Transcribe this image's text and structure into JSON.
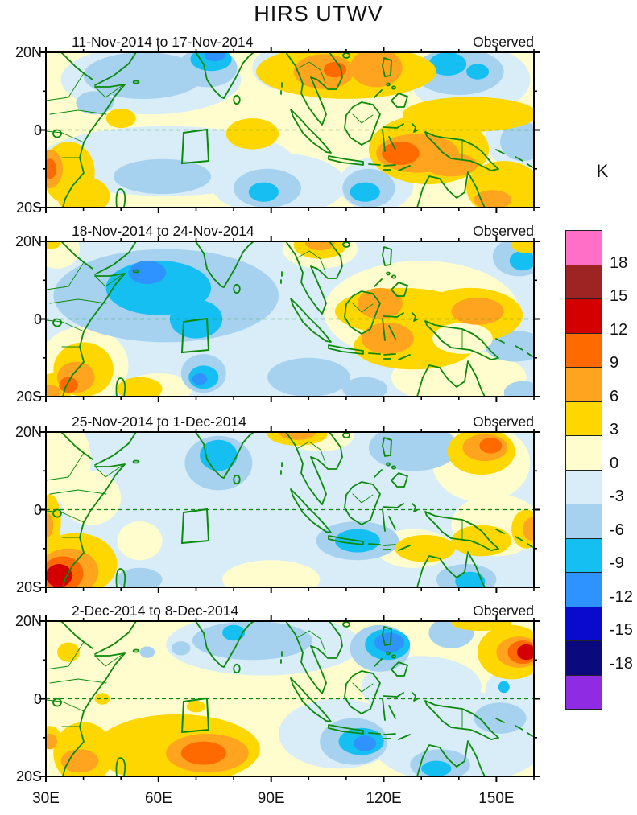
{
  "chart_data": {
    "type": "heatmap",
    "title": "HIRS UTWV",
    "colorbar": {
      "label": "K",
      "tick_values": [
        18,
        15,
        12,
        9,
        6,
        3,
        0,
        -3,
        -6,
        -9,
        -12,
        -15,
        -18
      ],
      "cell_colors_top_to_bottom": [
        "#FF6EC7",
        "#9E2424",
        "#D40000",
        "#FF6A00",
        "#FFA41E",
        "#FFD700",
        "#FFFDCE",
        "#D9EDF8",
        "#A6D2F0",
        "#15BFF2",
        "#2E93FF",
        "#0A0ACD",
        "#0A0A7E",
        "#8F2BE2"
      ]
    },
    "band_colors": {
      "0": "#FFFDCE",
      "3": "#FFD700",
      "6": "#FFA41E",
      "9": "#FF6A00",
      "12": "#D40000",
      "15": "#9E2424",
      "18": "#FF6EC7",
      "-3": "#D9EDF8",
      "-6": "#A6D2F0",
      "-9": "#15BFF2",
      "-12": "#2E93FF",
      "-15": "#0A0ACD",
      "-18": "#0A0A7E",
      "-21": "#8F2BE2"
    },
    "x_axis": {
      "ticks": [
        "30E",
        "60E",
        "90E",
        "120E",
        "150E"
      ],
      "tick_lons": [
        30,
        60,
        90,
        120,
        150
      ],
      "lon_range": [
        30,
        160
      ],
      "minor_tick_deg": 10
    },
    "y_axis": {
      "ticks": [
        "20N",
        "0",
        "20S"
      ],
      "tick_lats": [
        20,
        0,
        -20
      ],
      "lat_range": [
        -20,
        20
      ],
      "minor_tick_deg": 10
    },
    "map": {
      "equator_dashed": true,
      "index_box_lon": [
        67,
        73
      ],
      "index_box_lat": [
        -8,
        0
      ],
      "coastline_color": "#0b8a0b"
    },
    "panels": [
      {
        "label": "11-Nov-2014 to 17-Nov-2014",
        "source": "Observed",
        "base_band": 0,
        "anomalies": [
          [
            58,
            13,
            24,
            9,
            -3
          ],
          [
            62,
            -8,
            34,
            9,
            -3
          ],
          [
            143,
            13,
            16,
            9,
            -3
          ],
          [
            92,
            -14,
            18,
            8,
            -3
          ],
          [
            156,
            -2,
            9,
            8,
            -3
          ],
          [
            118,
            -14,
            10,
            7,
            -3
          ],
          [
            95,
            16,
            10,
            6,
            -3
          ],
          [
            56,
            14,
            16,
            6,
            -6
          ],
          [
            73,
            16,
            8,
            5,
            -6
          ],
          [
            43,
            7,
            5,
            3,
            -6
          ],
          [
            61,
            -12,
            13,
            4.5,
            -6
          ],
          [
            89,
            -15,
            9,
            5,
            -6
          ],
          [
            140,
            15,
            12,
            6,
            -6
          ],
          [
            157,
            -3,
            6,
            5,
            -6
          ],
          [
            116,
            -15,
            7,
            5,
            -6
          ],
          [
            74,
            18.2,
            5.5,
            3,
            -9
          ],
          [
            88,
            -16,
            4,
            2.5,
            -9
          ],
          [
            137,
            17,
            5,
            3,
            -9
          ],
          [
            145,
            15,
            3,
            2,
            -9
          ],
          [
            115,
            -16,
            4,
            2.5,
            -9
          ],
          [
            75,
            19.3,
            2.8,
            1.6,
            -12
          ],
          [
            36,
            -11,
            7,
            8,
            3
          ],
          [
            40,
            -17,
            7,
            5,
            3
          ],
          [
            50,
            3,
            4,
            2.5,
            3
          ],
          [
            85,
            -1,
            7,
            4,
            3
          ],
          [
            110,
            15,
            24,
            7,
            3
          ],
          [
            143,
            4,
            18,
            4.5,
            3
          ],
          [
            132,
            -5,
            16,
            9,
            3
          ],
          [
            152,
            -15,
            10,
            7,
            3
          ],
          [
            155,
            -18,
            6,
            4,
            3
          ],
          [
            31,
            -10,
            3.5,
            5,
            6
          ],
          [
            104,
            15,
            8,
            4.5,
            6
          ],
          [
            118,
            16,
            7,
            5,
            6
          ],
          [
            129,
            -6,
            11,
            5,
            6
          ],
          [
            138,
            -9,
            7,
            3,
            6
          ],
          [
            149,
            -18,
            5,
            2.5,
            6
          ],
          [
            31,
            -10,
            1.8,
            2.6,
            9
          ],
          [
            107,
            15.5,
            3,
            2,
            9
          ],
          [
            124.5,
            -6,
            5,
            3,
            9
          ]
        ]
      },
      {
        "label": "18-Nov-2014 to 24-Nov-2014",
        "source": "Observed",
        "base_band": -3,
        "anomalies": [
          [
            33,
            18,
            6,
            5,
            0
          ],
          [
            40,
            -12,
            12,
            10,
            0
          ],
          [
            60,
            -18,
            9,
            4,
            0
          ],
          [
            130,
            2,
            26,
            13,
            0
          ],
          [
            140,
            -15,
            18,
            7,
            0
          ],
          [
            103,
            18,
            10,
            5,
            0
          ],
          [
            62,
            6,
            30,
            12,
            -6
          ],
          [
            100,
            -15,
            11,
            5,
            -6
          ],
          [
            156,
            16,
            7,
            5,
            -6
          ],
          [
            115,
            -18,
            6,
            3,
            -6
          ],
          [
            157,
            -19,
            5,
            3,
            -6
          ],
          [
            155,
            -7,
            8,
            4,
            -6
          ],
          [
            72,
            -14,
            6,
            5,
            -6
          ],
          [
            60,
            8,
            14,
            7,
            -9
          ],
          [
            70,
            0,
            7,
            5,
            -9
          ],
          [
            72,
            -15,
            4,
            3,
            -9
          ],
          [
            157,
            15,
            3.5,
            2.5,
            -9
          ],
          [
            57,
            12,
            5,
            3,
            -12
          ],
          [
            71,
            -15.5,
            2,
            1.5,
            -12
          ],
          [
            31,
            19.5,
            3,
            1.5,
            3
          ],
          [
            40,
            -13,
            8,
            7,
            3
          ],
          [
            32,
            -18,
            5,
            4,
            3
          ],
          [
            55,
            -18,
            6,
            3,
            3
          ],
          [
            103,
            19,
            7,
            3.5,
            3
          ],
          [
            125,
            2,
            18,
            6,
            3
          ],
          [
            128,
            -7,
            16,
            6,
            3
          ],
          [
            143,
            1,
            14,
            7,
            3
          ],
          [
            158,
            19,
            4,
            2,
            3
          ],
          [
            141,
            -5,
            8,
            4,
            0
          ],
          [
            38,
            -15,
            5,
            4,
            6
          ],
          [
            31,
            -19,
            3,
            2,
            6
          ],
          [
            119,
            4,
            6,
            4,
            6
          ],
          [
            121,
            -5,
            7,
            4,
            6
          ],
          [
            145,
            2,
            7,
            3.5,
            6
          ],
          [
            103,
            19.7,
            4,
            2,
            6
          ],
          [
            36,
            -17,
            2.5,
            2,
            9
          ]
        ]
      },
      {
        "label": "25-Nov-2014 to 1-Dec-2014",
        "source": "Observed",
        "base_band": -3,
        "anomalies": [
          [
            33,
            13,
            9,
            11,
            0
          ],
          [
            42,
            3,
            8,
            7,
            0
          ],
          [
            90,
            -18,
            13,
            5,
            0
          ],
          [
            103,
            19,
            9,
            4,
            0
          ],
          [
            146,
            12,
            13,
            10,
            0
          ],
          [
            150,
            -4,
            12,
            8,
            0
          ],
          [
            128,
            -10,
            10,
            5,
            0
          ],
          [
            55,
            -8,
            6,
            5,
            0
          ],
          [
            76,
            12,
            9,
            7,
            -6
          ],
          [
            113,
            -8,
            11,
            5,
            -6
          ],
          [
            128,
            16,
            12,
            6,
            -6
          ],
          [
            142,
            -18,
            8,
            4,
            -6
          ],
          [
            55,
            -18,
            6,
            3,
            -6
          ],
          [
            76,
            14,
            5,
            4,
            -9
          ],
          [
            113,
            -8,
            6,
            3,
            -9
          ],
          [
            143,
            -18.5,
            4,
            2.5,
            -9
          ],
          [
            31,
            -3,
            3,
            7,
            3
          ],
          [
            38,
            -14,
            11,
            8,
            3
          ],
          [
            97,
            19.5,
            8,
            3,
            3
          ],
          [
            146,
            15,
            9,
            6,
            3
          ],
          [
            131,
            -10,
            8,
            3.5,
            3
          ],
          [
            146,
            -8,
            8,
            4,
            3
          ],
          [
            158,
            -5,
            4,
            5,
            3
          ],
          [
            30.5,
            -4,
            1.5,
            3,
            6
          ],
          [
            36,
            -16,
            8,
            6,
            6
          ],
          [
            97,
            20,
            5,
            2,
            6
          ],
          [
            147,
            16,
            6,
            3.5,
            6
          ],
          [
            159.5,
            -5,
            2.5,
            3,
            6
          ],
          [
            34.5,
            -16.5,
            5.5,
            4.5,
            9
          ],
          [
            148.5,
            16.5,
            3,
            2,
            9
          ],
          [
            33.5,
            -17,
            3.5,
            3,
            12
          ]
        ]
      },
      {
        "label": "2-Dec-2014 to 8-Dec-2014",
        "source": "Observed",
        "base_band": 0,
        "anomalies": [
          [
            88,
            14,
            26,
            8,
            -3
          ],
          [
            140,
            -10,
            24,
            12,
            -3
          ],
          [
            130,
            3,
            16,
            8,
            -3
          ],
          [
            155,
            2,
            8,
            6,
            -3
          ],
          [
            108,
            -9,
            16,
            9,
            -3
          ],
          [
            85,
            15,
            16,
            5,
            -6
          ],
          [
            119,
            13,
            8,
            6,
            -6
          ],
          [
            112,
            -11,
            9,
            6,
            -6
          ],
          [
            135,
            -17,
            8,
            4,
            -6
          ],
          [
            151,
            -5,
            7,
            4,
            -6
          ],
          [
            138,
            17,
            6,
            4,
            -6
          ],
          [
            66,
            13,
            2.5,
            1.8,
            -6
          ],
          [
            86,
            13,
            2,
            1.5,
            -6
          ],
          [
            57,
            12,
            2,
            1.5,
            -6
          ],
          [
            121,
            14,
            6,
            4,
            -9
          ],
          [
            114,
            -11,
            6,
            3.5,
            -9
          ],
          [
            134,
            -18,
            4,
            2,
            -9
          ],
          [
            80,
            17,
            3,
            2,
            -9
          ],
          [
            152,
            3,
            1.5,
            1.5,
            -9
          ],
          [
            121.5,
            14.5,
            4,
            2.5,
            -12
          ],
          [
            115,
            -11.5,
            3,
            2,
            -12
          ],
          [
            65,
            -13,
            22,
            9,
            3
          ],
          [
            40,
            -14,
            8,
            8,
            3
          ],
          [
            36,
            12,
            3,
            2.5,
            3
          ],
          [
            154,
            12,
            9,
            7,
            3
          ],
          [
            146,
            19.5,
            8,
            2,
            3
          ],
          [
            70,
            -2,
            2.5,
            1.5,
            3
          ],
          [
            45,
            0,
            2,
            1.5,
            3
          ],
          [
            31,
            -10,
            3,
            3,
            3
          ],
          [
            73,
            -14,
            11,
            5,
            6
          ],
          [
            39,
            -16,
            5,
            3,
            6
          ],
          [
            156,
            12,
            6,
            4,
            6
          ],
          [
            31,
            -11,
            2,
            2,
            6
          ],
          [
            72,
            -14,
            6,
            3,
            9
          ],
          [
            157,
            12,
            4,
            3,
            9
          ],
          [
            158,
            12,
            2.5,
            2,
            12
          ]
        ]
      }
    ]
  }
}
